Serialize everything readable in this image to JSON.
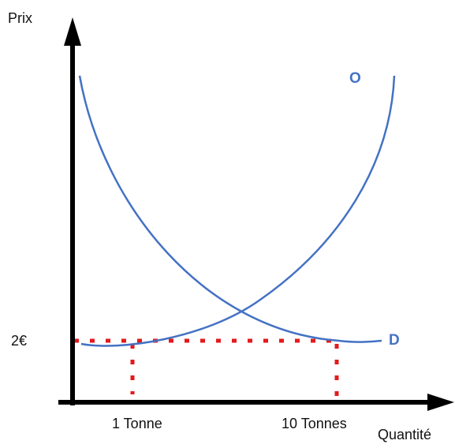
{
  "chart_data": {
    "type": "line",
    "xlabel": "Quantité",
    "ylabel": "Prix",
    "series": [
      {
        "name": "O",
        "color": "#4472c4"
      },
      {
        "name": "D",
        "color": "#4472c4"
      }
    ],
    "y_ticks": [
      {
        "label": "2€"
      }
    ],
    "x_ticks": [
      {
        "label": "1 Tonne"
      },
      {
        "label": "10 Tonnes"
      }
    ],
    "reference_line_color": "#e31a1c",
    "axis_color": "#000000"
  }
}
